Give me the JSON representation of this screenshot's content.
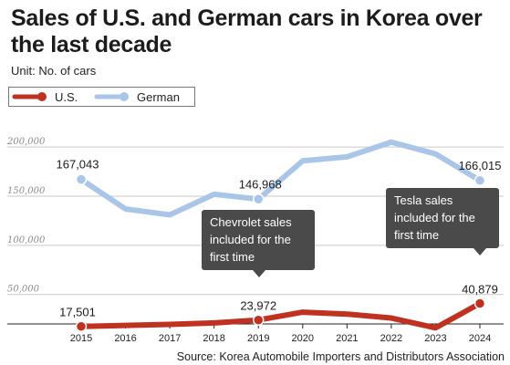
{
  "title": "Sales of U.S. and German cars in Korea over the last decade",
  "unit": "Unit: No. of cars",
  "source": "Source: Korea Automobile Importers and Distributors Association",
  "chart_data": {
    "type": "line",
    "title": "Sales of U.S. and German cars in Korea over the last decade",
    "x": [
      "2015",
      "2016",
      "2017",
      "2018",
      "2019",
      "2020",
      "2021",
      "2022",
      "2023",
      "2024"
    ],
    "y_ticks": [
      "50,000",
      "100,000",
      "150,000",
      "200,000"
    ],
    "ylim": [
      20000,
      215000
    ],
    "grid": true,
    "legend_position": "top-left",
    "series": [
      {
        "name": "U.S.",
        "color": "#c0311f",
        "values": [
          17501,
          18500,
          19500,
          21000,
          23972,
          32000,
          30000,
          26000,
          16000,
          40879
        ],
        "labels": {
          "0": "17,501",
          "4": "23,972",
          "9": "40,879"
        }
      },
      {
        "name": "German",
        "color": "#a9c6e8",
        "values": [
          167043,
          137000,
          131000,
          152000,
          146968,
          186000,
          190000,
          205000,
          193000,
          166015
        ],
        "labels": {
          "0": "167,043",
          "4": "146,968",
          "9": "166,015"
        }
      }
    ],
    "annotations": [
      {
        "index": 4,
        "lines": [
          "Chevrolet sales",
          "included for the",
          "first time"
        ]
      },
      {
        "index": 9,
        "lines": [
          "Tesla sales",
          "included for the",
          "first time"
        ]
      }
    ]
  }
}
